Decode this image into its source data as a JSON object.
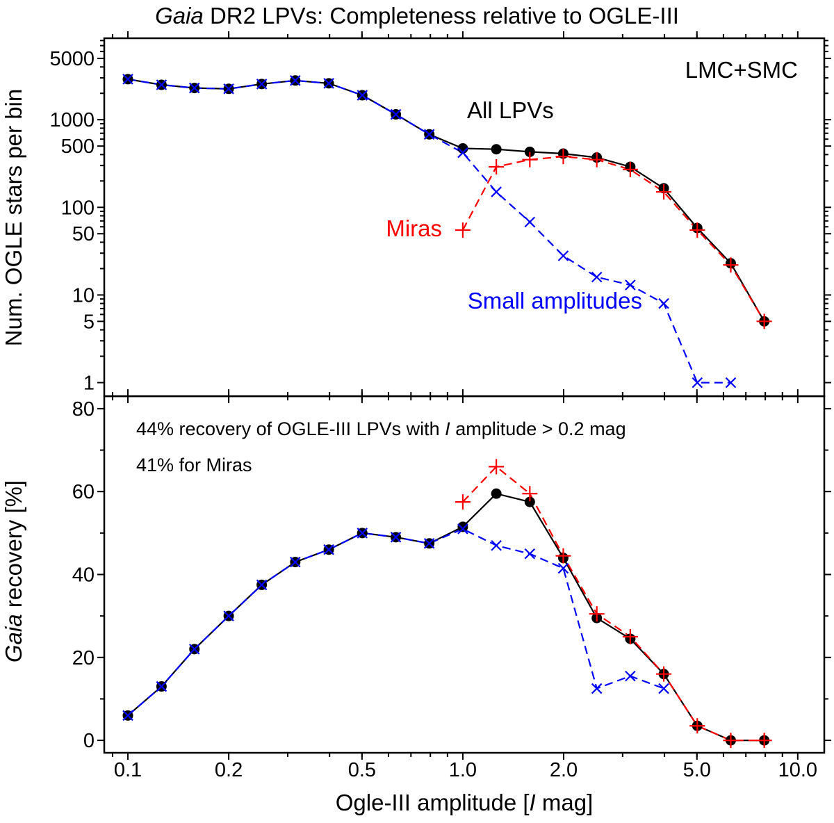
{
  "chart_data": [
    {
      "type": "line",
      "panel": "top",
      "title_italic": "Gaia",
      "title_rest": " DR2 LPVs: Completeness relative to OGLE-III",
      "ylabel": "Num. OGLE stars per bin",
      "yscale": "log",
      "ylim": [
        0.7,
        8500
      ],
      "yticks": [
        1,
        5,
        10,
        50,
        100,
        500,
        1000,
        5000
      ],
      "ytick_labels": [
        "1",
        "5",
        "10",
        "50",
        "100",
        "500",
        "1000",
        "5000"
      ],
      "region_label": "LMC+SMC",
      "series": [
        {
          "name": "All LPVs",
          "color": "#000000",
          "marker": "circle",
          "line": "solid",
          "x": [
            0.1,
            0.126,
            0.158,
            0.2,
            0.251,
            0.316,
            0.398,
            0.501,
            0.631,
            0.794,
            1.0,
            1.259,
            1.585,
            1.995,
            2.512,
            3.162,
            3.981,
            5.012,
            6.31,
            7.943
          ],
          "values": [
            2900,
            2500,
            2300,
            2250,
            2550,
            2800,
            2600,
            1900,
            1150,
            680,
            470,
            460,
            430,
            410,
            370,
            290,
            165,
            58,
            23,
            5
          ]
        },
        {
          "name": "Miras",
          "color": "#ff0000",
          "marker": "plus",
          "line": "dashed",
          "x": [
            1.0,
            1.259,
            1.585,
            1.995,
            2.512,
            3.162,
            3.981,
            5.012,
            6.31,
            7.943
          ],
          "values": [
            55,
            290,
            350,
            380,
            350,
            270,
            150,
            55,
            22,
            5
          ]
        },
        {
          "name": "Small amplitudes",
          "color": "#0000ff",
          "marker": "x",
          "line": "dashed",
          "x": [
            0.1,
            0.126,
            0.158,
            0.2,
            0.251,
            0.316,
            0.398,
            0.501,
            0.631,
            0.794,
            1.0,
            1.259,
            1.585,
            1.995,
            2.512,
            3.162,
            3.981,
            5.012,
            6.31
          ],
          "values": [
            2900,
            2500,
            2300,
            2250,
            2550,
            2800,
            2600,
            1900,
            1150,
            680,
            420,
            150,
            68,
            28,
            16,
            13,
            8,
            1,
            1
          ]
        }
      ]
    },
    {
      "type": "line",
      "panel": "bottom",
      "ylabel_italic": "Gaia",
      "ylabel_rest": " recovery [%]",
      "xlabel_pre": "Ogle-III amplitude  [",
      "xlabel_italic": "I",
      "xlabel_post": " mag]",
      "xscale": "log",
      "xlim": [
        0.085,
        12
      ],
      "xticks": [
        0.1,
        0.2,
        0.5,
        1.0,
        2.0,
        5.0,
        10.0
      ],
      "xtick_labels": [
        "0.1",
        "0.2",
        "0.5",
        "1.0",
        "2.0",
        "5.0",
        "10.0"
      ],
      "ylim": [
        -3,
        83
      ],
      "yticks": [
        0,
        20,
        40,
        60,
        80
      ],
      "ytick_labels": [
        "0",
        "20",
        "40",
        "60",
        "80"
      ],
      "note1_pre": "44% recovery of OGLE-III LPVs with ",
      "note1_italic": "I",
      "note1_post": " amplitude > 0.2 mag",
      "note2": "41% for Miras",
      "series": [
        {
          "name": "All LPVs",
          "color": "#000000",
          "marker": "circle",
          "line": "solid",
          "x": [
            0.1,
            0.126,
            0.158,
            0.2,
            0.251,
            0.316,
            0.398,
            0.501,
            0.631,
            0.794,
            1.0,
            1.259,
            1.585,
            1.995,
            2.512,
            3.162,
            3.981,
            5.012,
            6.31,
            7.943
          ],
          "values": [
            6,
            13,
            22,
            30,
            37.5,
            43,
            46,
            50,
            49,
            47.5,
            51.5,
            59.5,
            57.5,
            44,
            29.5,
            24.5,
            16,
            3.5,
            0,
            0
          ]
        },
        {
          "name": "Miras",
          "color": "#ff0000",
          "marker": "plus",
          "line": "dashed",
          "x": [
            1.0,
            1.259,
            1.585,
            1.995,
            2.512,
            3.162,
            3.981,
            5.012,
            6.31,
            7.943
          ],
          "values": [
            57.5,
            66,
            59.5,
            44.5,
            30.5,
            25,
            16,
            3.5,
            0,
            0
          ]
        },
        {
          "name": "Small amplitudes",
          "color": "#0000ff",
          "marker": "x",
          "line": "dashed",
          "x": [
            0.1,
            0.126,
            0.158,
            0.2,
            0.251,
            0.316,
            0.398,
            0.501,
            0.631,
            0.794,
            1.0,
            1.259,
            1.585,
            1.995,
            2.512,
            3.162,
            3.981
          ],
          "values": [
            6,
            13,
            22,
            30,
            37.5,
            43,
            46,
            50,
            49,
            47.5,
            51,
            47,
            45,
            41.5,
            12.5,
            15.5,
            12.5
          ]
        }
      ]
    }
  ]
}
